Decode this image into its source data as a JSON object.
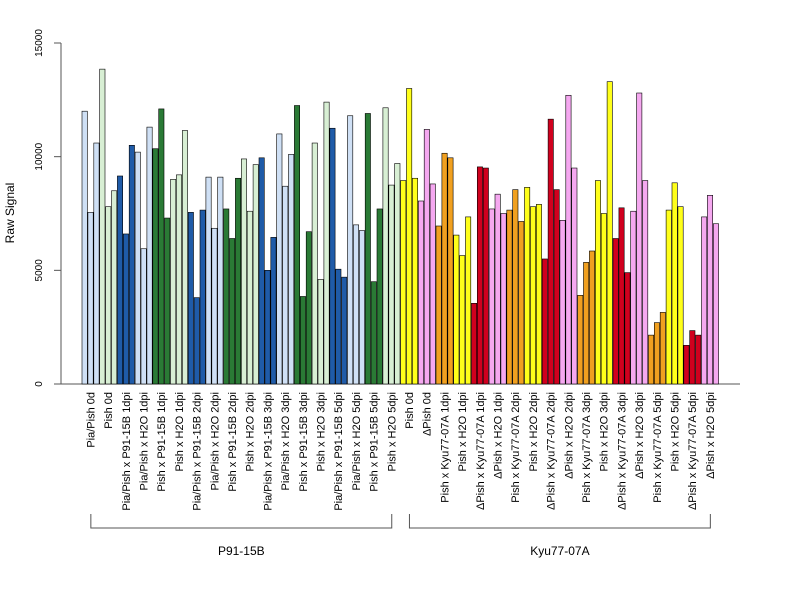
{
  "chart_data": {
    "type": "bar",
    "ylabel": "Raw Signal",
    "ylim": [
      0,
      15000
    ],
    "yticks": [
      0,
      5000,
      10000,
      15000
    ],
    "groups": [
      {
        "name": "P91-15B",
        "first": 0,
        "last": 17
      },
      {
        "name": "Kyu77-07A",
        "first": 18,
        "last": 35
      }
    ],
    "categories": [
      "Pia/Pish 0d",
      "Pish 0d",
      "Pia/Pish x P91-15B 1dpi",
      "Pia/Pish x H2O 1dpi",
      "Pish x P91-15B 1dpi",
      "Pish x H2O 1dpi",
      "Pia/Pish x P91-15B 2dpi",
      "Pia/Pish x H2O 2dpi",
      "Pish x P91-15B 2dpi",
      "Pish x H2O 2dpi",
      "Pia/Pish x P91-15B 3dpi",
      "Pia/Pish x H2O 3dpi",
      "Pish x P91-15B 3dpi",
      "Pish x H2O 3dpi",
      "Pia/Pish x P91-15B 5dpi",
      "Pia/Pish x H2O 5dpi",
      "Pish x P91-15B 5dpi",
      "Pish x H2O 5dpi",
      "Pish 0d",
      "ΔPish 0d",
      "Pish x Kyu77-07A 1dpi",
      "Pish x H2O 1dpi",
      "ΔPish x Kyu77-07A 1dpi",
      "ΔPish x H2O 1dpi",
      "Pish x Kyu77-07A 2dpi",
      "Pish x H2O 2dpi",
      "ΔPish x Kyu77-07A 2dpi",
      "ΔPish x H2O 2dpi",
      "Pish x Kyu77-07A 3dpi",
      "Pish x H2O 3dpi",
      "ΔPish x Kyu77-07A 3dpi",
      "ΔPish x H2O 3dpi",
      "Pish x Kyu77-07A 5dpi",
      "Pish x H2O 5dpi",
      "ΔPish x Kyu77-07A 5dpi",
      "ΔPish x H2O 5dpi"
    ],
    "colors": [
      "#cfe0f5",
      "#d8efd4",
      "#1f5ba8",
      "#cfe0f5",
      "#2a7a35",
      "#d8efd4",
      "#1f5ba8",
      "#cfe0f5",
      "#2a7a35",
      "#d8efd4",
      "#1f5ba8",
      "#cfe0f5",
      "#2a7a35",
      "#d8efd4",
      "#1f5ba8",
      "#cfe0f5",
      "#2a7a35",
      "#d8efd4",
      "#ffff1a",
      "#f5a8f0",
      "#f0a020",
      "#ffff1a",
      "#d0001e",
      "#f5a8f0",
      "#f0a020",
      "#ffff1a",
      "#d0001e",
      "#f5a8f0",
      "#f0a020",
      "#ffff1a",
      "#d0001e",
      "#f5a8f0",
      "#f0a020",
      "#ffff1a",
      "#d0001e",
      "#f5a8f0"
    ],
    "series": [
      {
        "values": [
          12000,
          13850,
          9150,
          10200,
          10350,
          9000,
          7550,
          9100,
          7700,
          9900,
          9950,
          11000,
          12250,
          10600,
          11250,
          11800,
          11900,
          12150,
          8950,
          8050,
          6950,
          6550,
          3550,
          7700,
          7650,
          8650,
          5500,
          7200,
          3900,
          8950,
          6400,
          7600,
          2150,
          7650,
          1700,
          7350
        ]
      },
      {
        "values": [
          7550,
          7800,
          6600,
          5950,
          12100,
          9200,
          3800,
          6850,
          6400,
          7600,
          5000,
          8700,
          3850,
          4600,
          5050,
          7000,
          4500,
          8750,
          13000,
          11200,
          10150,
          5650,
          9550,
          8350,
          8550,
          7800,
          11650,
          12700,
          5350,
          7500,
          7750,
          12800,
          2700,
          8850,
          2350,
          8300
        ]
      },
      {
        "values": [
          10600,
          8500,
          10500,
          11300,
          7300,
          11150,
          7650,
          9100,
          9050,
          9650,
          6450,
          10100,
          6700,
          12400,
          4700,
          6750,
          7700,
          9700,
          9050,
          8800,
          9950,
          7350,
          9500,
          7500,
          7150,
          7900,
          8550,
          9500,
          5850,
          13300,
          4900,
          8950,
          3150,
          7800,
          2150,
          7050
        ]
      }
    ]
  }
}
